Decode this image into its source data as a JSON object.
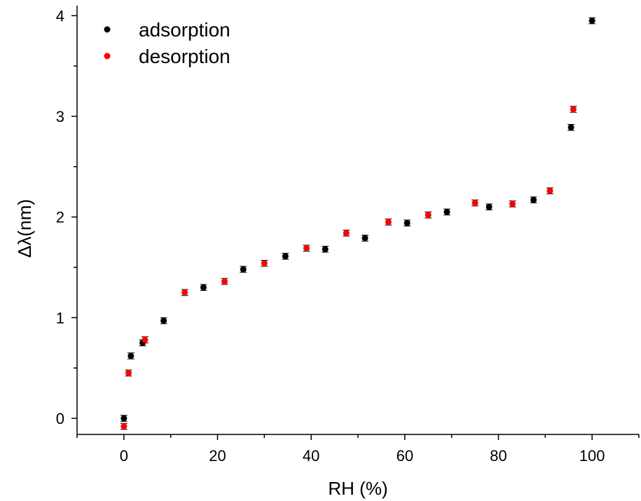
{
  "chart_data": {
    "type": "scatter",
    "xlabel": "RH (%)",
    "ylabel": "Δλ(nm)",
    "xlim": [
      -10,
      110
    ],
    "ylim": [
      -0.16,
      4.1
    ],
    "x_ticks": [
      0,
      20,
      40,
      60,
      80,
      100
    ],
    "y_ticks": [
      0,
      1,
      2,
      3,
      4
    ],
    "legend_position": "top-left",
    "grid": false,
    "series": [
      {
        "name": "adsorption",
        "color": "#000000",
        "points": [
          {
            "x": 0.0,
            "y": 0.0,
            "err": 0.03
          },
          {
            "x": 1.5,
            "y": 0.62,
            "err": 0.03
          },
          {
            "x": 4.0,
            "y": 0.75,
            "err": 0.03
          },
          {
            "x": 8.5,
            "y": 0.97,
            "err": 0.03
          },
          {
            "x": 17.0,
            "y": 1.3,
            "err": 0.03
          },
          {
            "x": 25.5,
            "y": 1.48,
            "err": 0.03
          },
          {
            "x": 34.5,
            "y": 1.61,
            "err": 0.03
          },
          {
            "x": 43.0,
            "y": 1.68,
            "err": 0.03
          },
          {
            "x": 51.5,
            "y": 1.79,
            "err": 0.03
          },
          {
            "x": 60.5,
            "y": 1.94,
            "err": 0.03
          },
          {
            "x": 69.0,
            "y": 2.05,
            "err": 0.03
          },
          {
            "x": 78.0,
            "y": 2.1,
            "err": 0.03
          },
          {
            "x": 87.5,
            "y": 2.17,
            "err": 0.03
          },
          {
            "x": 95.5,
            "y": 2.89,
            "err": 0.03
          },
          {
            "x": 100.0,
            "y": 3.95,
            "err": 0.03
          }
        ]
      },
      {
        "name": "desorption",
        "color": "#ff0000",
        "points": [
          {
            "x": 0.0,
            "y": -0.08,
            "err": 0.03
          },
          {
            "x": 1.0,
            "y": 0.45,
            "err": 0.03
          },
          {
            "x": 4.5,
            "y": 0.78,
            "err": 0.03
          },
          {
            "x": 13.0,
            "y": 1.25,
            "err": 0.03
          },
          {
            "x": 21.5,
            "y": 1.36,
            "err": 0.03
          },
          {
            "x": 30.0,
            "y": 1.54,
            "err": 0.03
          },
          {
            "x": 39.0,
            "y": 1.69,
            "err": 0.03
          },
          {
            "x": 47.5,
            "y": 1.84,
            "err": 0.03
          },
          {
            "x": 56.5,
            "y": 1.95,
            "err": 0.03
          },
          {
            "x": 65.0,
            "y": 2.02,
            "err": 0.03
          },
          {
            "x": 75.0,
            "y": 2.14,
            "err": 0.03
          },
          {
            "x": 83.0,
            "y": 2.13,
            "err": 0.03
          },
          {
            "x": 91.0,
            "y": 2.26,
            "err": 0.03
          },
          {
            "x": 96.0,
            "y": 3.07,
            "err": 0.03
          }
        ]
      }
    ]
  }
}
